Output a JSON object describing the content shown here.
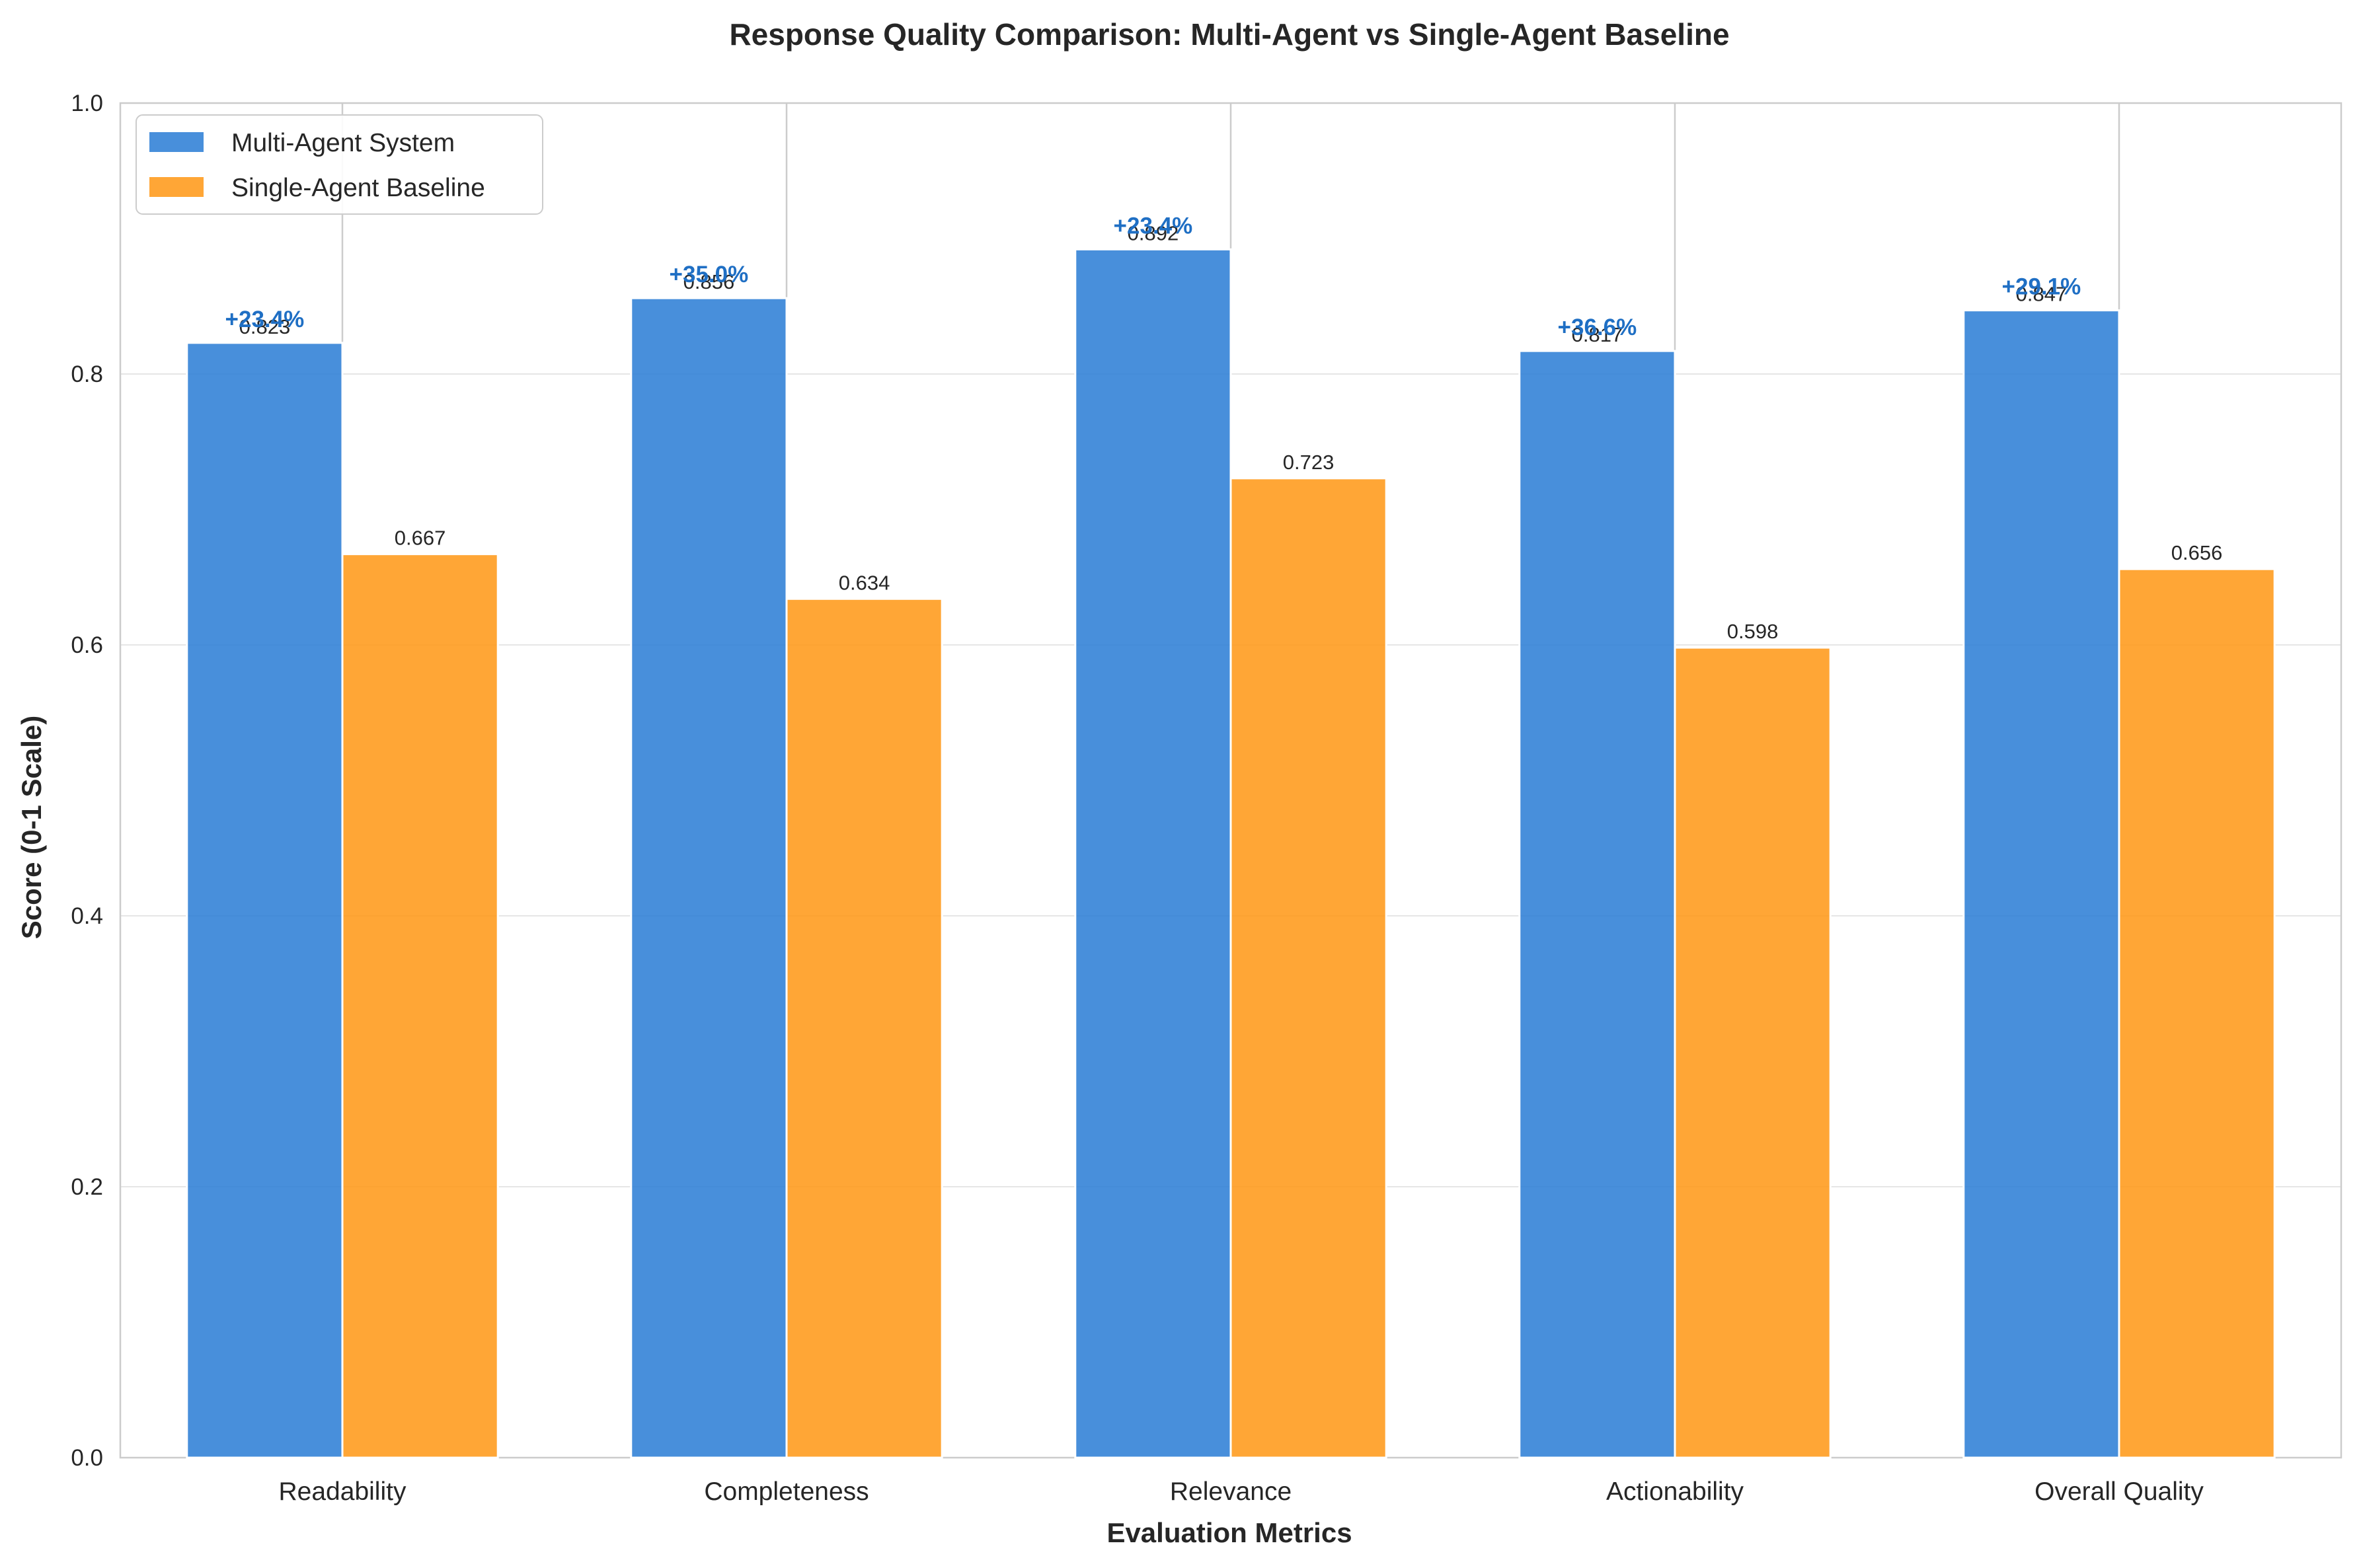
{
  "chart_data": {
    "type": "bar",
    "title": "Response Quality Comparison: Multi-Agent vs Single-Agent Baseline",
    "xlabel": "Evaluation Metrics",
    "ylabel": "Score (0-1 Scale)",
    "ylim": [
      0,
      1.0
    ],
    "yticks": [
      "0.0",
      "0.2",
      "0.4",
      "0.6",
      "0.8",
      "1.0"
    ],
    "grid": true,
    "legend_position": "top-left",
    "categories": [
      "Readability",
      "Completeness",
      "Relevance",
      "Actionability",
      "Overall Quality"
    ],
    "series": [
      {
        "name": "Multi-Agent System",
        "color": "#2f80d6",
        "values": [
          0.823,
          0.856,
          0.892,
          0.817,
          0.847
        ],
        "labels": [
          "0.823",
          "0.856",
          "0.892",
          "0.817",
          "0.847"
        ]
      },
      {
        "name": "Single-Agent Baseline",
        "color": "#ff9a1a",
        "values": [
          0.667,
          0.634,
          0.723,
          0.598,
          0.656
        ],
        "labels": [
          "0.667",
          "0.634",
          "0.723",
          "0.598",
          "0.656"
        ]
      }
    ],
    "improvement_labels": [
      "+23.4%",
      "+35.0%",
      "+23.4%",
      "+36.6%",
      "+29.1%"
    ],
    "improvement_color": "#1f6fc4"
  }
}
